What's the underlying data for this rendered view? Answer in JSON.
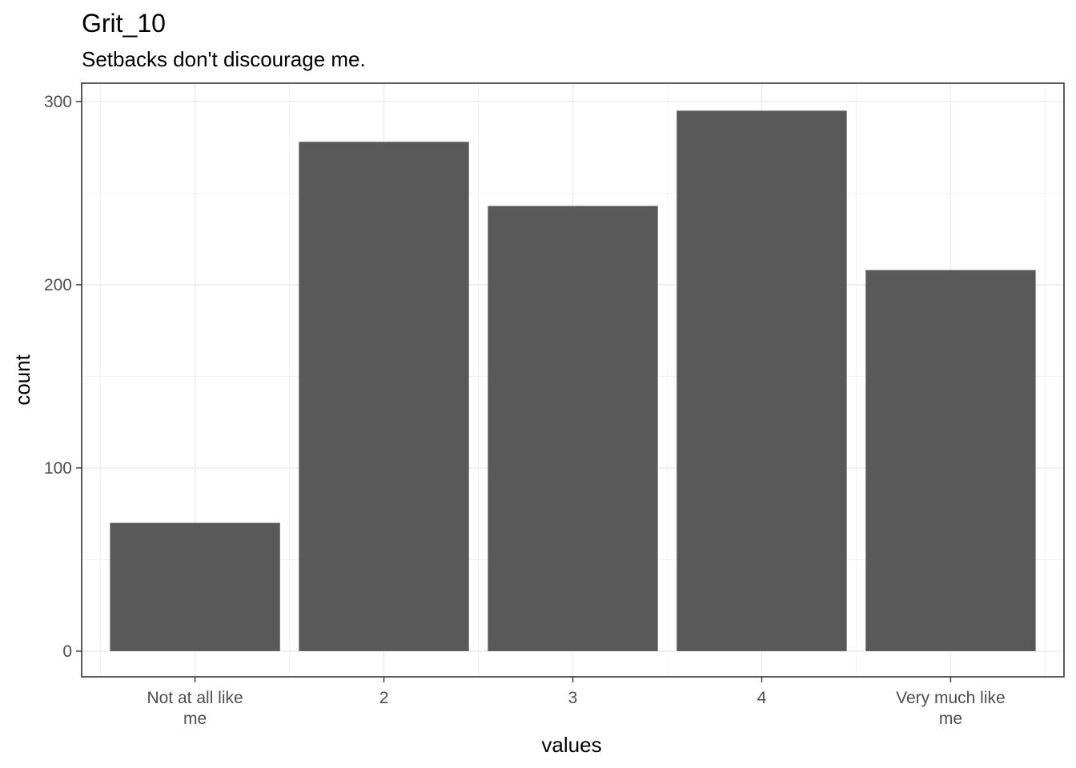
{
  "chart_data": {
    "type": "bar",
    "title": "Grit_10",
    "subtitle": "Setbacks don't discourage me.",
    "xlabel": "values",
    "ylabel": "count",
    "categories": [
      [
        "Not at all like",
        "me"
      ],
      [
        "2"
      ],
      [
        "3"
      ],
      [
        "4"
      ],
      [
        "Very much like",
        "me"
      ]
    ],
    "values": [
      70,
      278,
      243,
      295,
      208
    ],
    "ylim": [
      -14,
      310
    ],
    "yticks": [
      0,
      100,
      200,
      300
    ],
    "ytick_labels": [
      "0",
      "100",
      "200",
      "300"
    ],
    "grid": true,
    "legend": "none",
    "bar_color": "#595959"
  }
}
